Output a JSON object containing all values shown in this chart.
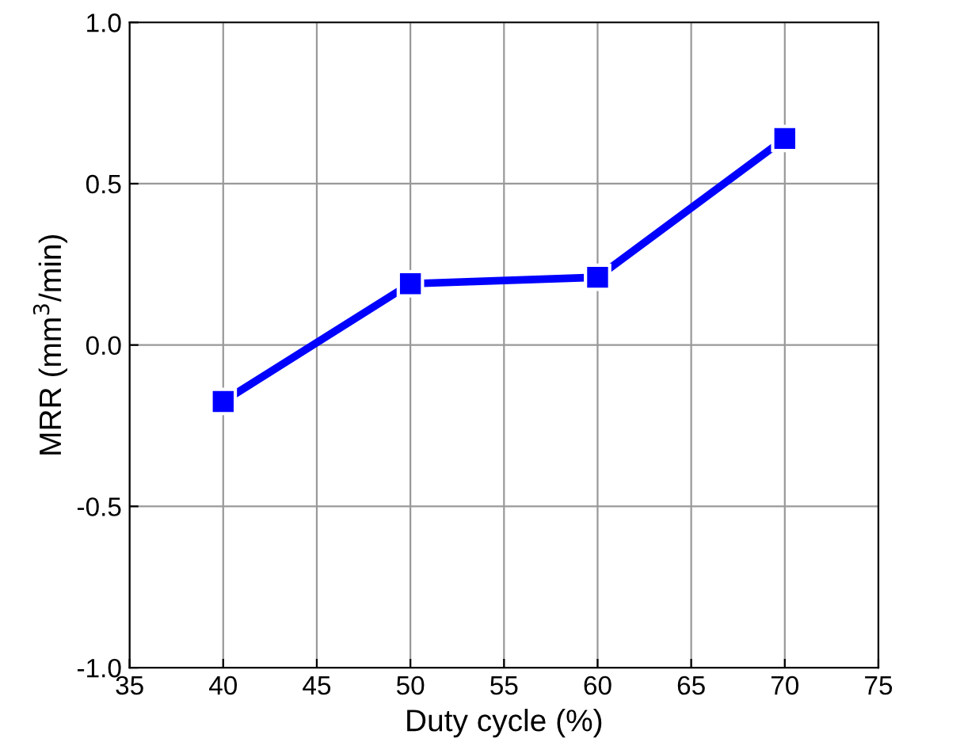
{
  "chart_data": {
    "type": "line",
    "xlabel": "Duty cycle (%)",
    "ylabel": "MRR (mm$^{3}$/min)",
    "x": [
      40,
      50,
      60,
      70
    ],
    "series": [
      {
        "color": "#0000ff",
        "values": [
          -0.175,
          0.19,
          0.21,
          0.64
        ]
      }
    ],
    "xlim": [
      35,
      75
    ],
    "xticks": [
      35,
      40,
      45,
      50,
      55,
      60,
      65,
      70,
      75
    ],
    "ylim": [
      -1.0,
      1.0
    ],
    "yticks": [
      {
        "value": -1.0,
        "label": "-1.0"
      },
      {
        "value": -0.5,
        "label": "-0.5"
      },
      {
        "value": 0.0,
        "label": "0.0"
      },
      {
        "value": 0.5,
        "label": "0.5"
      },
      {
        "value": 1.0,
        "label": "1.0"
      }
    ],
    "grid": true,
    "marker": "square",
    "line_style": "solid"
  }
}
